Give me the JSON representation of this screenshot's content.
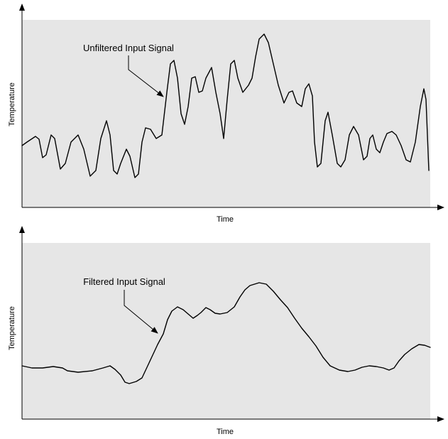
{
  "top_panel": {
    "signal_label": "Unfiltered Input Signal",
    "x_axis_label": "Time",
    "y_axis_label": "Temperature"
  },
  "bottom_panel": {
    "signal_label": "Filtered Input Signal",
    "x_axis_label": "Time",
    "y_axis_label": "Temperature"
  }
}
